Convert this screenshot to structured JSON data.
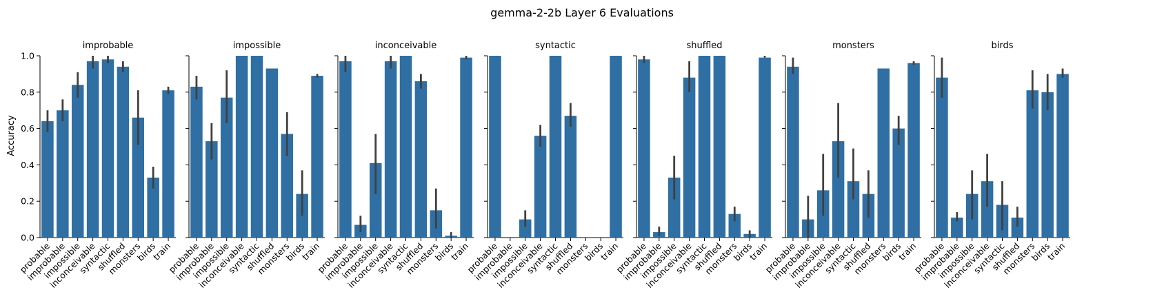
{
  "figure": {
    "title": "gemma-2-2b Layer 6 Evaluations",
    "ylabel": "Accuracy",
    "bar_color": "#2f6fa3",
    "errbar_color": "#404040"
  },
  "chart_data": [
    {
      "type": "bar",
      "title": "improbable",
      "categories": [
        "probable",
        "improbable",
        "impossible",
        "inconceivable",
        "syntactic",
        "shuffled",
        "monsters",
        "birds",
        "train"
      ],
      "values": [
        0.64,
        0.7,
        0.84,
        0.97,
        0.98,
        0.94,
        0.66,
        0.33,
        0.81
      ],
      "err_low": [
        0.58,
        0.64,
        0.77,
        0.93,
        0.96,
        0.91,
        0.51,
        0.27,
        0.79
      ],
      "err_high": [
        0.7,
        0.76,
        0.91,
        1.0,
        1.0,
        0.97,
        0.81,
        0.39,
        0.83
      ],
      "ylim": [
        0,
        1
      ],
      "yticks": [
        "0.0",
        "0.2",
        "0.4",
        "0.6",
        "0.8",
        "1.0"
      ]
    },
    {
      "type": "bar",
      "title": "impossible",
      "categories": [
        "probable",
        "improbable",
        "impossible",
        "inconceivable",
        "syntactic",
        "shuffled",
        "monsters",
        "birds",
        "train"
      ],
      "values": [
        0.83,
        0.53,
        0.77,
        1.0,
        1.0,
        0.93,
        0.57,
        0.24,
        0.89
      ],
      "err_low": [
        0.76,
        0.43,
        0.63,
        1.0,
        1.0,
        0.93,
        0.45,
        0.12,
        0.88
      ],
      "err_high": [
        0.89,
        0.63,
        0.92,
        1.0,
        1.0,
        0.93,
        0.69,
        0.37,
        0.9
      ],
      "ylim": [
        0,
        1
      ],
      "yticks": [
        "0.0",
        "0.2",
        "0.4",
        "0.6",
        "0.8",
        "1.0"
      ]
    },
    {
      "type": "bar",
      "title": "inconceivable",
      "categories": [
        "probable",
        "improbable",
        "impossible",
        "inconceivable",
        "syntactic",
        "shuffled",
        "monsters",
        "birds",
        "train"
      ],
      "values": [
        0.97,
        0.07,
        0.41,
        0.97,
        1.0,
        0.86,
        0.15,
        0.01,
        0.99
      ],
      "err_low": [
        0.91,
        0.03,
        0.24,
        0.93,
        1.0,
        0.82,
        0.05,
        0.0,
        0.98
      ],
      "err_high": [
        1.0,
        0.12,
        0.57,
        1.0,
        1.0,
        0.9,
        0.27,
        0.03,
        1.0
      ],
      "ylim": [
        0,
        1
      ],
      "yticks": [
        "0.0",
        "0.2",
        "0.4",
        "0.6",
        "0.8",
        "1.0"
      ]
    },
    {
      "type": "bar",
      "title": "syntactic",
      "categories": [
        "probable",
        "improbable",
        "impossible",
        "inconceivable",
        "syntactic",
        "shuffled",
        "monsters",
        "birds",
        "train"
      ],
      "values": [
        1.0,
        0.0,
        0.1,
        0.56,
        1.0,
        0.67,
        0.0,
        0.0,
        1.0
      ],
      "err_low": [
        1.0,
        0.0,
        0.06,
        0.5,
        1.0,
        0.61,
        0.0,
        0.0,
        1.0
      ],
      "err_high": [
        1.0,
        0.0,
        0.15,
        0.62,
        1.0,
        0.74,
        0.0,
        0.0,
        1.0
      ],
      "ylim": [
        0,
        1
      ],
      "yticks": [
        "0.0",
        "0.2",
        "0.4",
        "0.6",
        "0.8",
        "1.0"
      ]
    },
    {
      "type": "bar",
      "title": "shuffled",
      "categories": [
        "probable",
        "improbable",
        "impossible",
        "inconceivable",
        "syntactic",
        "shuffled",
        "monsters",
        "birds",
        "train"
      ],
      "values": [
        0.98,
        0.03,
        0.33,
        0.88,
        1.0,
        1.0,
        0.13,
        0.02,
        0.99
      ],
      "err_low": [
        0.96,
        0.01,
        0.21,
        0.8,
        1.0,
        1.0,
        0.09,
        0.0,
        0.99
      ],
      "err_high": [
        1.0,
        0.06,
        0.45,
        0.97,
        1.0,
        1.0,
        0.17,
        0.04,
        1.0
      ],
      "ylim": [
        0,
        1
      ],
      "yticks": [
        "0.0",
        "0.2",
        "0.4",
        "0.6",
        "0.8",
        "1.0"
      ]
    },
    {
      "type": "bar",
      "title": "monsters",
      "categories": [
        "probable",
        "improbable",
        "impossible",
        "inconceivable",
        "syntactic",
        "shuffled",
        "monsters",
        "birds",
        "train"
      ],
      "values": [
        0.94,
        0.1,
        0.26,
        0.53,
        0.31,
        0.24,
        0.93,
        0.6,
        0.96
      ],
      "err_low": [
        0.9,
        0.0,
        0.12,
        0.33,
        0.21,
        0.11,
        0.93,
        0.51,
        0.95
      ],
      "err_high": [
        0.99,
        0.23,
        0.46,
        0.74,
        0.49,
        0.37,
        0.93,
        0.67,
        0.97
      ],
      "ylim": [
        0,
        1
      ],
      "yticks": [
        "0.0",
        "0.2",
        "0.4",
        "0.6",
        "0.8",
        "1.0"
      ]
    },
    {
      "type": "bar",
      "title": "birds",
      "categories": [
        "probable",
        "improbable",
        "impossible",
        "inconceivable",
        "syntactic",
        "shuffled",
        "monsters",
        "birds",
        "train"
      ],
      "values": [
        0.88,
        0.11,
        0.24,
        0.31,
        0.18,
        0.11,
        0.81,
        0.8,
        0.9
      ],
      "err_low": [
        0.77,
        0.09,
        0.1,
        0.17,
        0.04,
        0.06,
        0.71,
        0.7,
        0.88
      ],
      "err_high": [
        0.99,
        0.14,
        0.37,
        0.46,
        0.31,
        0.17,
        0.92,
        0.9,
        0.93
      ],
      "ylim": [
        0,
        1
      ],
      "yticks": [
        "0.0",
        "0.2",
        "0.4",
        "0.6",
        "0.8",
        "1.0"
      ]
    }
  ]
}
